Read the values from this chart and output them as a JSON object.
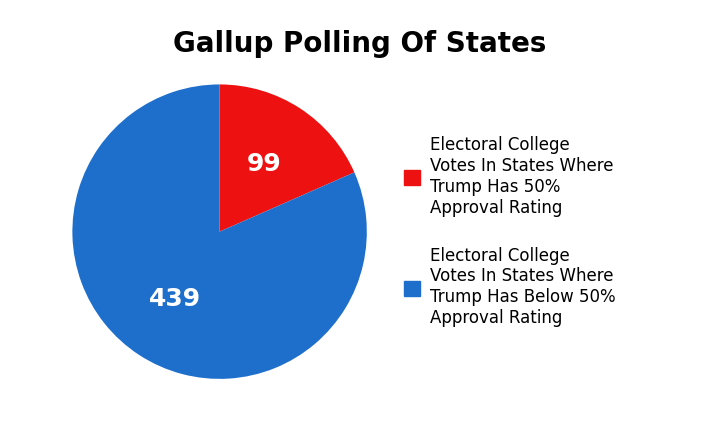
{
  "title": "Gallup Polling Of States",
  "values": [
    99,
    439
  ],
  "colors": [
    "#EE1111",
    "#1E6FCC"
  ],
  "labels": [
    "99",
    "439"
  ],
  "legend_labels": [
    "Electoral College\nVotes In States Where\nTrump Has 50%\nApproval Rating",
    "Electoral College\nVotes In States Where\nTrump Has Below 50%\nApproval Rating"
  ],
  "title_fontsize": 20,
  "label_fontsize": 18,
  "legend_fontsize": 12,
  "background_color": "#ffffff",
  "startangle": 90,
  "text_color": "#ffffff"
}
